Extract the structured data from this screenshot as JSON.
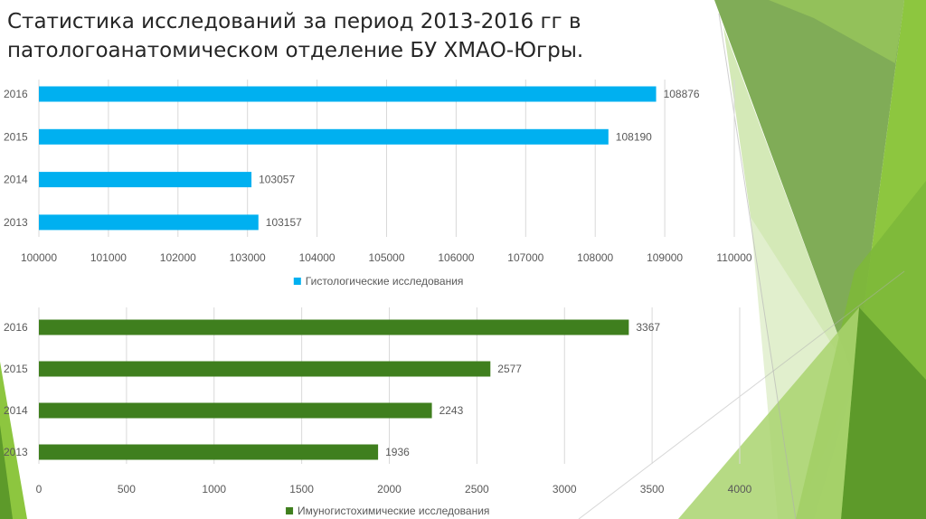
{
  "slide": {
    "title": "Статистика исследований за период 2013-2016 гг в патологоанатомическом отделение БУ ХМАО-Югры."
  },
  "chart_data": [
    {
      "type": "bar",
      "orientation": "horizontal",
      "categories": [
        "2016",
        "2015",
        "2014",
        "2013"
      ],
      "series": [
        {
          "name": "Гистологические исследования",
          "values": [
            108876,
            108190,
            103057,
            103157
          ],
          "color": "#00B0F0"
        }
      ],
      "xlim": [
        100000,
        110000
      ],
      "xticks": [
        "100000",
        "101000",
        "102000",
        "103000",
        "104000",
        "105000",
        "106000",
        "107000",
        "108000",
        "109000",
        "110000"
      ],
      "grid": true,
      "legend": "bottom",
      "data_labels": true
    },
    {
      "type": "bar",
      "orientation": "horizontal",
      "categories": [
        "2016",
        "2015",
        "2014",
        "2013"
      ],
      "series": [
        {
          "name": "Имуногистохимические исследования",
          "values": [
            3367,
            2577,
            2243,
            1936
          ],
          "color": "#3F7F1E"
        }
      ],
      "xlim": [
        0,
        4000
      ],
      "xticks": [
        "0",
        "500",
        "1000",
        "1500",
        "2000",
        "2500",
        "3000",
        "3500",
        "4000"
      ],
      "grid": true,
      "legend": "bottom",
      "data_labels": true
    }
  ],
  "theme": {
    "accent_green": "#8DC63F",
    "dark_green": "#4E8C2A",
    "text": "#595959",
    "grid": "#D9D9D9"
  }
}
